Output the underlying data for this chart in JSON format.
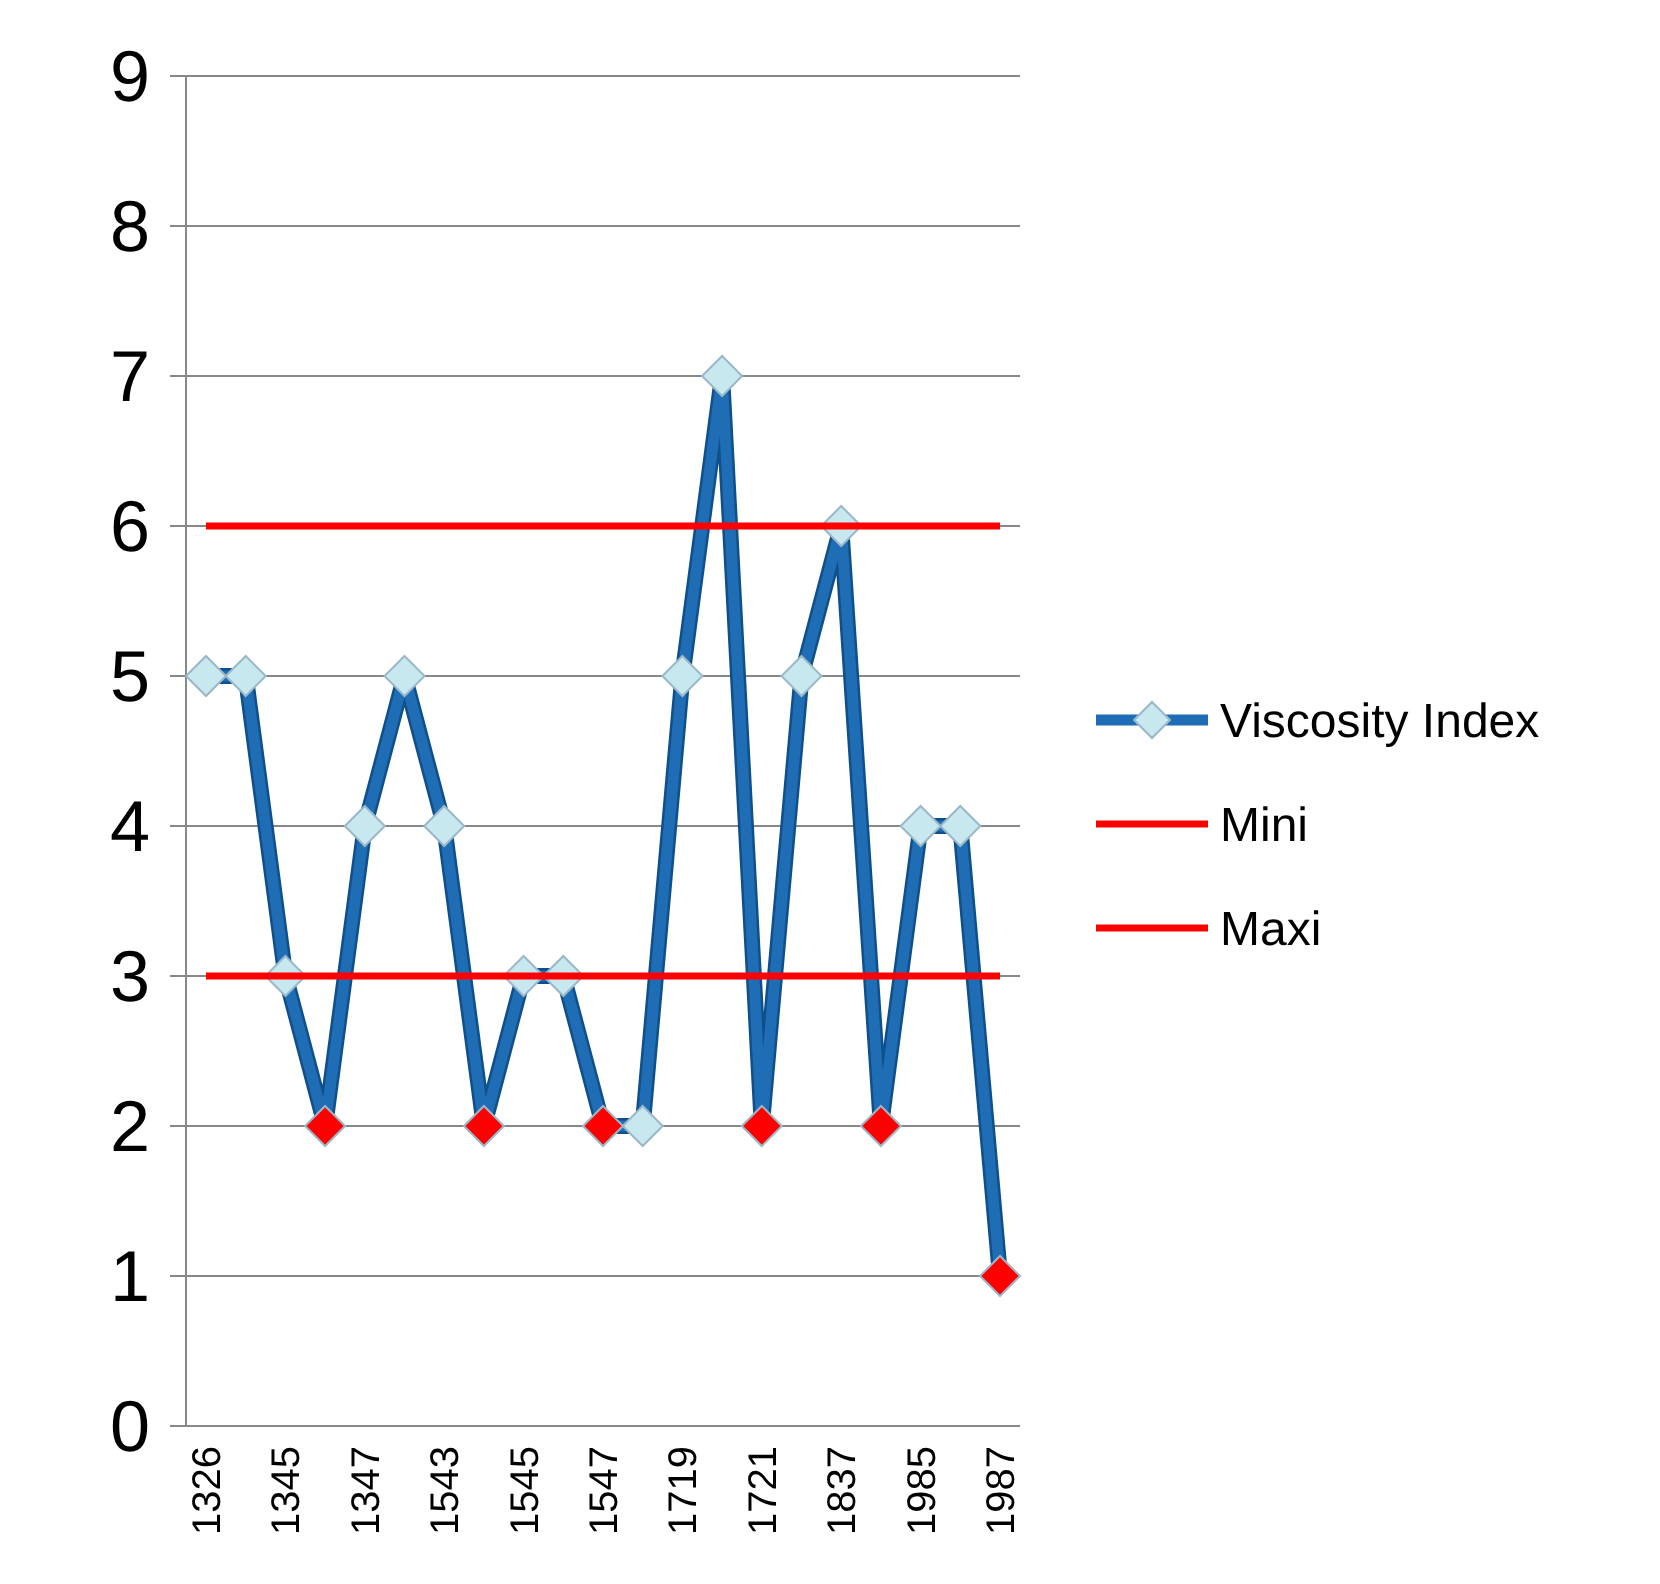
{
  "chart_data": {
    "type": "line",
    "categories": [
      "1326",
      null,
      "1345",
      null,
      "1347",
      null,
      "1543",
      null,
      "1545",
      null,
      "1547",
      null,
      "1719",
      null,
      "1721",
      null,
      "1837",
      null,
      "1985",
      null,
      "1987"
    ],
    "series": [
      {
        "name": "Viscosity Index",
        "color": "#1f6db5",
        "marker": "diamond",
        "values": [
          5,
          5,
          3,
          2,
          4,
          5,
          4,
          2,
          3,
          3,
          2,
          2,
          5,
          7,
          2,
          5,
          6,
          2,
          4,
          4,
          1
        ],
        "colors": [
          "#c6e8ee",
          "#c6e8ee",
          "#c6e8ee",
          "#ff0000",
          "#c6e8ee",
          "#c6e8ee",
          "#c6e8ee",
          "#ff0000",
          "#c6e8ee",
          "#c6e8ee",
          "#ff0000",
          "#c6e8ee",
          "#c6e8ee",
          "#c6e8ee",
          "#ff0000",
          "#c6e8ee",
          "#c6e8ee",
          "#ff0000",
          "#c6e8ee",
          "#c6e8ee",
          "#ff0000"
        ]
      },
      {
        "name": "Mini",
        "color": "#ff0000",
        "marker": "none",
        "values": [
          3,
          3,
          3,
          3,
          3,
          3,
          3,
          3,
          3,
          3,
          3,
          3,
          3,
          3,
          3,
          3,
          3,
          3,
          3,
          3,
          3
        ]
      },
      {
        "name": "Maxi",
        "color": "#ff0000",
        "marker": "none",
        "values": [
          6,
          6,
          6,
          6,
          6,
          6,
          6,
          6,
          6,
          6,
          6,
          6,
          6,
          6,
          6,
          6,
          6,
          6,
          6,
          6,
          6
        ]
      }
    ],
    "ylim": [
      0,
      9
    ],
    "yticks": [
      0,
      1,
      2,
      3,
      4,
      5,
      6,
      7,
      8,
      9
    ],
    "grid": "y",
    "legend": "right"
  }
}
